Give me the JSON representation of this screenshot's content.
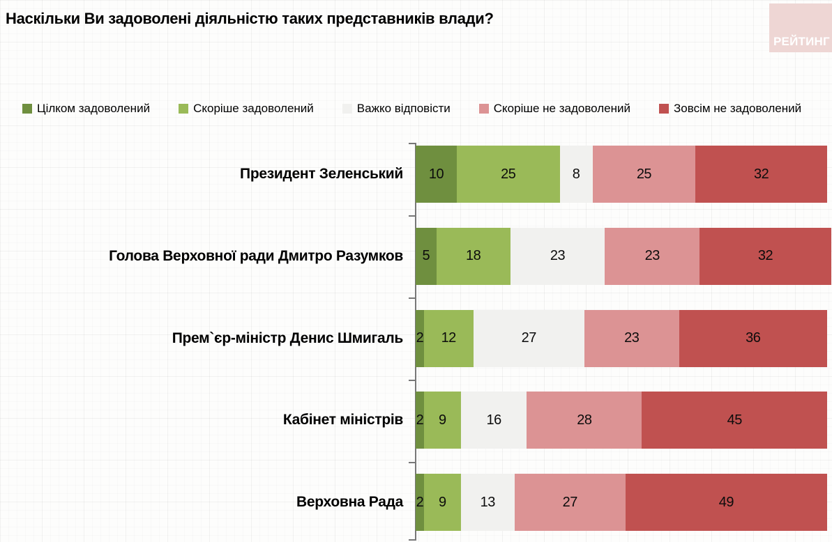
{
  "title": "Наскільки Ви задоволені діяльністю таких представників влади?",
  "logo": {
    "text": "РЕЙТИНГ",
    "bg_color": "#eed6d4",
    "text_color": "#ffffff"
  },
  "chart_data": {
    "type": "bar",
    "stacked": true,
    "orientation": "horizontal",
    "title": "Наскільки Ви задоволені діяльністю таких представників влади?",
    "legend_position": "top",
    "value_labels": "inside-center",
    "xlim": [
      0,
      100
    ],
    "grid": false,
    "axis_color": "#777777",
    "categories": [
      "Президент Зеленський",
      "Голова Верховної ради Дмитро Разумков",
      "Прем`єр-міністр Денис Шмигаль",
      "Кабінет міністрів",
      "Верховна Рада"
    ],
    "series": [
      {
        "name": "Цілком задоволений",
        "color": "#6f8f3f",
        "values": [
          10,
          5,
          2,
          2,
          2
        ]
      },
      {
        "name": "Скоріше задоволений",
        "color": "#9aba58",
        "values": [
          25,
          18,
          12,
          9,
          9
        ]
      },
      {
        "name": "Важко відповісти",
        "color": "#f1f1ef",
        "values": [
          8,
          23,
          27,
          16,
          13
        ]
      },
      {
        "name": "Скоріше не задоволений",
        "color": "#dc9394",
        "values": [
          25,
          23,
          23,
          28,
          27
        ]
      },
      {
        "name": "Зовсім не задоволений",
        "color": "#c05150",
        "values": [
          32,
          32,
          36,
          45,
          49
        ]
      }
    ]
  }
}
